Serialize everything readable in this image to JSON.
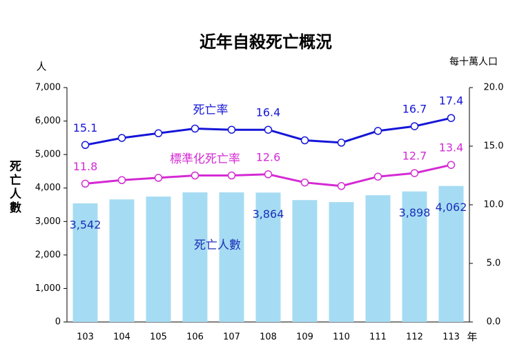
{
  "chart_data": {
    "type": "bar_line",
    "title": "近年自殺死亡概況",
    "y_unit": "人",
    "y_label": "死亡人數",
    "y2_label": "每十萬人口",
    "x_label": "年",
    "categories": [
      "103",
      "104",
      "105",
      "106",
      "107",
      "108",
      "109",
      "110",
      "111",
      "112",
      "113"
    ],
    "ylim": [
      0,
      7000
    ],
    "yticks": [
      {
        "value": 0,
        "label": "0"
      },
      {
        "value": 1000,
        "label": "1,000"
      },
      {
        "value": 2000,
        "label": "2,000"
      },
      {
        "value": 3000,
        "label": "3,000"
      },
      {
        "value": 4000,
        "label": "4,000"
      },
      {
        "value": 5000,
        "label": "5,000"
      },
      {
        "value": 6000,
        "label": "6,000"
      },
      {
        "value": 7000,
        "label": "7,000"
      }
    ],
    "y2lim": [
      0,
      20
    ],
    "y2ticks": [
      {
        "value": 0,
        "label": "0.0"
      },
      {
        "value": 5,
        "label": "5.0"
      },
      {
        "value": 10,
        "label": "10.0"
      },
      {
        "value": 15,
        "label": "15.0"
      },
      {
        "value": 20,
        "label": "20.0"
      }
    ],
    "series": [
      {
        "name": "死亡人數",
        "type": "bar",
        "color": "#a6dcf3",
        "label_color": "#1a2fb8",
        "values": [
          3542,
          3660,
          3745,
          3870,
          3870,
          3864,
          3640,
          3580,
          3785,
          3898,
          4062
        ],
        "value_labels": [
          "3,542",
          null,
          null,
          null,
          null,
          "3,864",
          null,
          null,
          null,
          "3,898",
          "4,062"
        ]
      },
      {
        "name": "死亡率",
        "type": "line",
        "axis": "y2",
        "color": "#1515d8",
        "values": [
          15.1,
          15.7,
          16.1,
          16.5,
          16.4,
          16.4,
          15.5,
          15.3,
          16.3,
          16.7,
          17.4
        ],
        "value_labels": [
          "15.1",
          null,
          null,
          null,
          null,
          "16.4",
          null,
          null,
          null,
          "16.7",
          "17.4"
        ]
      },
      {
        "name": "標準化死亡率",
        "type": "line",
        "axis": "y2",
        "color": "#d42ad4",
        "values": [
          11.8,
          12.1,
          12.3,
          12.5,
          12.5,
          12.6,
          11.9,
          11.6,
          12.4,
          12.7,
          13.4
        ],
        "value_labels": [
          "11.8",
          null,
          null,
          null,
          null,
          "12.6",
          null,
          null,
          null,
          "12.7",
          "13.4"
        ]
      }
    ]
  }
}
